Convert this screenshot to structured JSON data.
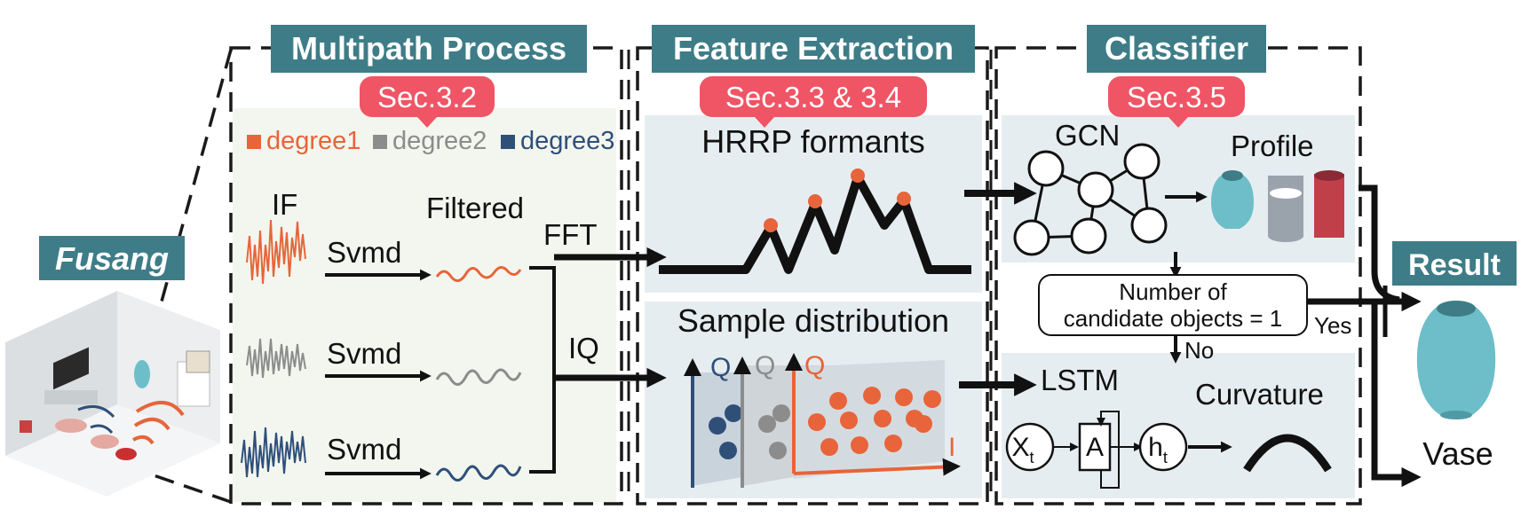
{
  "app": {
    "name": "Fusang"
  },
  "sections": {
    "multipath": {
      "title": "Multipath Process",
      "sec": "Sec.3.2"
    },
    "feature": {
      "title": "Feature Extraction",
      "sec": "Sec.3.3 & 3.4"
    },
    "classifier": {
      "title": "Classifier",
      "sec": "Sec.3.5"
    }
  },
  "legend": [
    {
      "label": "degree1",
      "color": "#e8643a"
    },
    {
      "label": "degree2",
      "color": "#8c8c8c"
    },
    {
      "label": "degree3",
      "color": "#2f4f79"
    }
  ],
  "multipath": {
    "if_label": "IF",
    "filtered_label": "Filtered",
    "svmd_label": "Svmd",
    "fft_label": "FFT",
    "iq_label": "IQ"
  },
  "feature": {
    "hrrp_title": "HRRP formants",
    "sample_title": "Sample distribution",
    "axis_q": "Q",
    "axis_i": "I"
  },
  "classifier": {
    "gcn_label": "GCN",
    "profile_label": "Profile",
    "decision_line1": "Number of",
    "decision_line2": "candidate objects = 1",
    "yes_label": "Yes",
    "no_label": "No",
    "lstm_label": "LSTM",
    "curvature_label": "Curvature",
    "xt_label": "X",
    "xt_sub": "t",
    "a_label": "A",
    "ht_label": "h",
    "ht_sub": "t"
  },
  "result": {
    "title": "Result",
    "object": "Vase"
  },
  "colors": {
    "teal": "#3e7d87",
    "red_badge": "#ef5565",
    "panel": "#e6edf0",
    "panel_green": "#f2f6ee",
    "orange": "#e8643a",
    "gray": "#8c8c8c",
    "navy": "#2f4f79"
  }
}
